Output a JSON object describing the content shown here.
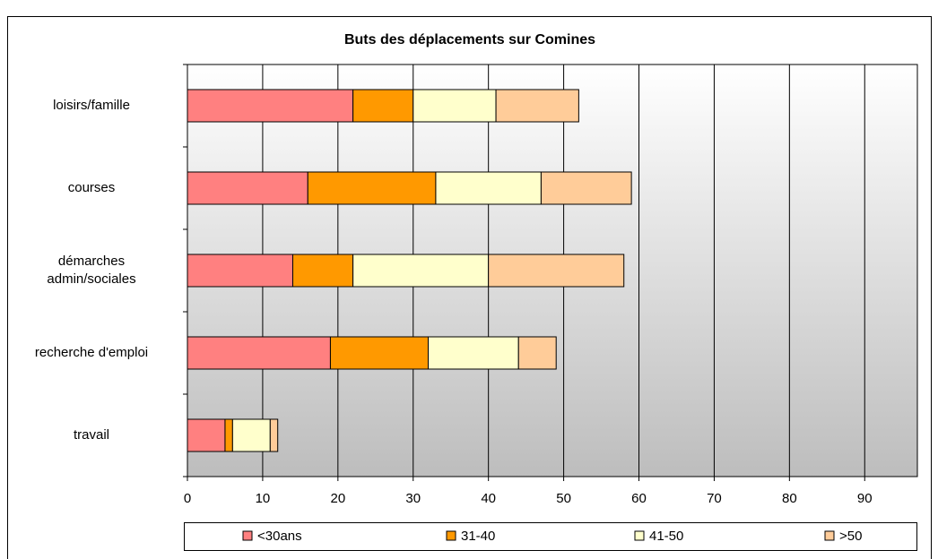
{
  "chart_data": {
    "type": "stacked-bar-horizontal",
    "title": "Buts des déplacements sur Comines",
    "categories": [
      "loisirs/famille",
      "courses",
      "démarches\nadmin/sociales",
      "recherche d'emploi",
      "travail"
    ],
    "series": [
      {
        "name": "<30ans",
        "color": "#ff8080",
        "values": [
          22,
          16,
          14,
          19,
          5
        ]
      },
      {
        "name": "31-40",
        "color": "#ff9900",
        "values": [
          8,
          17,
          8,
          13,
          1
        ]
      },
      {
        "name": "41-50",
        "color": "#ffffcc",
        "values": [
          11,
          14,
          18,
          12,
          5
        ]
      },
      {
        "name": ">50",
        "color": "#ffcc99",
        "values": [
          11,
          12,
          18,
          5,
          1
        ]
      }
    ],
    "xlim": [
      0,
      97
    ],
    "xticks": [
      0,
      10,
      20,
      30,
      40,
      50,
      60,
      70,
      80,
      90
    ],
    "grid": true,
    "legend": "bottom"
  }
}
